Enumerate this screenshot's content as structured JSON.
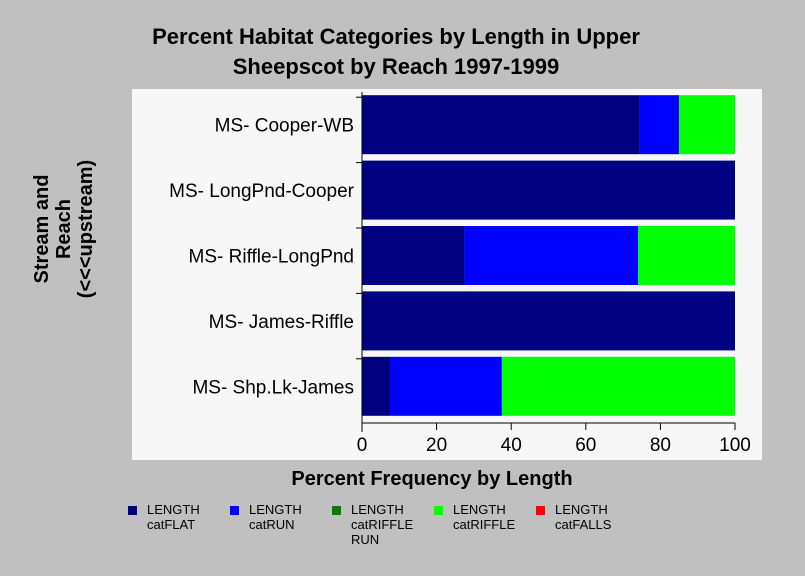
{
  "chart_data": {
    "type": "bar",
    "orientation": "horizontal",
    "stacked": true,
    "title_lines": [
      "Percent Habitat Categories by Length in Upper",
      "Sheepscot by Reach 1997-1999"
    ],
    "xlabel": "Percent Frequency by Length",
    "ylabel_lines": [
      "Stream and",
      "Reach",
      "(<<<upstream)"
    ],
    "xlim": [
      0,
      100
    ],
    "xticks": [
      "0",
      "20",
      "40",
      "60",
      "80",
      "100"
    ],
    "grid": false,
    "legend_position": "bottom",
    "categories": [
      "MS- Cooper-WB",
      "MS- LongPnd-Cooper",
      "MS- Riffle-LongPnd",
      "MS- James-Riffle",
      "MS- Shp.Lk-James"
    ],
    "series": [
      {
        "name_lines": [
          "LENGTH",
          "catFLAT"
        ],
        "color": "#000080",
        "values": [
          74.5,
          100,
          27.5,
          100,
          7.5
        ]
      },
      {
        "name_lines": [
          "LENGTH",
          "catRUN"
        ],
        "color": "#0000ff",
        "values": [
          10.5,
          0,
          46.5,
          0,
          30
        ]
      },
      {
        "name_lines": [
          "LENGTH",
          "catRIFFLE",
          "RUN"
        ],
        "color": "#008000",
        "values": [
          0,
          0,
          0,
          0,
          0
        ]
      },
      {
        "name_lines": [
          "LENGTH",
          "catRIFFLE"
        ],
        "color": "#00ff00",
        "values": [
          15,
          0,
          26,
          0,
          62.5
        ]
      },
      {
        "name_lines": [
          "LENGTH",
          "catFALLS"
        ],
        "color": "#ff0000",
        "values": [
          0,
          0,
          0,
          0,
          0
        ]
      }
    ]
  }
}
